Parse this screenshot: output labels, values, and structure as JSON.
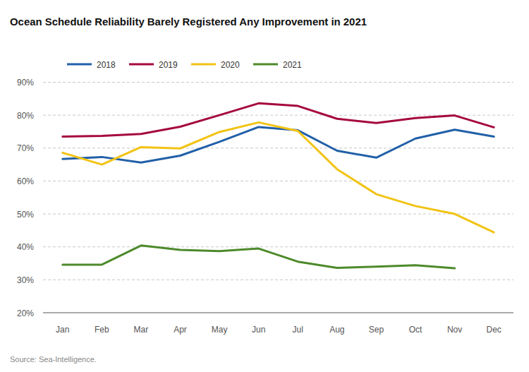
{
  "chart_data": {
    "type": "line",
    "title": "Ocean Schedule Reliability Barely Registered Any Improvement in 2021",
    "source": "Source: Sea-Intelligence.",
    "categories": [
      "Jan",
      "Feb",
      "Mar",
      "Apr",
      "May",
      "Jun",
      "Jul",
      "Aug",
      "Sep",
      "Oct",
      "Nov",
      "Dec"
    ],
    "series": [
      {
        "name": "2018",
        "color": "#2160a8",
        "values": [
          66.7,
          67.3,
          65.6,
          67.7,
          71.9,
          76.4,
          75.4,
          69.2,
          67.1,
          72.9,
          75.6,
          73.5
        ]
      },
      {
        "name": "2019",
        "color": "#a5093d",
        "values": [
          73.5,
          73.7,
          74.3,
          76.5,
          80.0,
          83.6,
          82.8,
          78.9,
          77.6,
          79.1,
          79.9,
          76.3
        ]
      },
      {
        "name": "2020",
        "color": "#f2c314",
        "values": [
          68.6,
          65.0,
          70.3,
          69.9,
          74.9,
          77.8,
          75.2,
          63.6,
          56.0,
          52.4,
          50.0,
          44.4
        ]
      },
      {
        "name": "2021",
        "color": "#4d8a2b",
        "values": [
          34.6,
          34.6,
          40.4,
          39.1,
          38.7,
          39.5,
          35.5,
          33.6,
          34.0,
          34.4,
          33.5,
          null
        ]
      }
    ],
    "ylim": [
      20,
      90
    ],
    "yticks": [
      {
        "value": 20,
        "label": "20%"
      },
      {
        "value": 30,
        "label": "30%"
      },
      {
        "value": 40,
        "label": "40%"
      },
      {
        "value": 50,
        "label": "50%"
      },
      {
        "value": 60,
        "label": "60%"
      },
      {
        "value": 70,
        "label": "70%"
      },
      {
        "value": 80,
        "label": "80%"
      },
      {
        "value": 90,
        "label": "90%"
      }
    ],
    "grid": true,
    "legend": "top"
  }
}
